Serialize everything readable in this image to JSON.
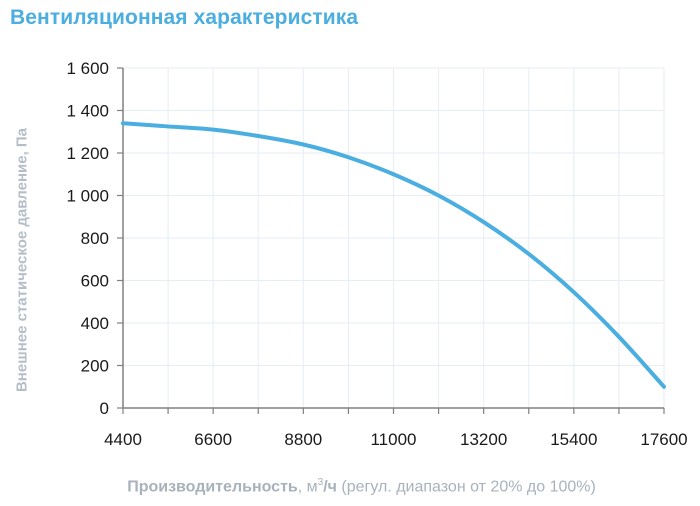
{
  "title": "Вентиляционная характеристика",
  "ylabel": "Внешнее статическое давление, Па",
  "xlabel": {
    "bold_part": "Производительность",
    "unit_prefix": ", м",
    "unit_sup": "3",
    "unit_suffix": "/ч",
    "note": " (регул. диапазон от 20% до 100%)"
  },
  "colors": {
    "title": "#4aaee0",
    "curve": "#4aaee0",
    "axis_label": "#b4bec8",
    "grid": "#e6edf4",
    "axis": "#808080"
  },
  "chart_data": {
    "type": "line",
    "title": "Вентиляционная характеристика",
    "xlabel": "Производительность, м³/ч (регул. диапазон от 20% до 100%)",
    "ylabel": "Внешнее статическое давление, Па",
    "xlim": [
      4400,
      17600
    ],
    "ylim": [
      0,
      1600
    ],
    "x_tick_labels": [
      "4400",
      "6600",
      "8800",
      "11000",
      "13200",
      "15400",
      "17600"
    ],
    "x_minor_ticks_every": 1100,
    "y_tick_labels": [
      "0",
      "200",
      "400",
      "600",
      "800",
      "1 000",
      "1 200",
      "1 400",
      "1 600"
    ],
    "grid": true,
    "legend": null,
    "series": [
      {
        "name": "Внешнее статическое давление",
        "x": [
          4400,
          5500,
          6600,
          7700,
          8800,
          9900,
          11000,
          12100,
          13200,
          14300,
          15400,
          16500,
          17600
        ],
        "values": [
          1340,
          1325,
          1310,
          1280,
          1240,
          1180,
          1100,
          1000,
          875,
          725,
          545,
          335,
          100
        ]
      }
    ]
  }
}
